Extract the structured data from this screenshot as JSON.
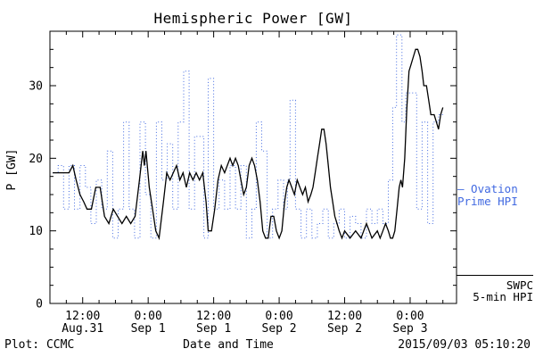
{
  "page": {
    "footer_left": "Plot: CCMC",
    "footer_right": "2015/09/03 05:10:20"
  },
  "chart_data": {
    "type": "line",
    "title": "Hemispheric Power [GW]",
    "xlabel": "Date and Time",
    "ylabel": "P [GW]",
    "ylim": [
      0,
      37.5
    ],
    "yticks": [
      0,
      10,
      20,
      30
    ],
    "y_minor_step": 2.5,
    "x_unit": "hours since 2015-08-31 00:00 UT",
    "xlim_hours_since_aug31": [
      6,
      80.5
    ],
    "x_minor_step_hours": 3,
    "xticks": [
      {
        "t": 12,
        "time": "12:00",
        "date": "Aug.31"
      },
      {
        "t": 24,
        "time": "0:00",
        "date": "Sep 1"
      },
      {
        "t": 36,
        "time": "12:00",
        "date": "Sep 1"
      },
      {
        "t": 48,
        "time": "0:00",
        "date": "Sep 2"
      },
      {
        "t": 60,
        "time": "12:00",
        "date": "Sep 2"
      },
      {
        "t": 72,
        "time": "0:00",
        "date": "Sep 3"
      }
    ],
    "series": [
      {
        "name": "Ovation Prime HPI",
        "color": "#4169e1",
        "line_style": "dotted-step",
        "points": [
          [
            6.5,
            18
          ],
          [
            7.5,
            19
          ],
          [
            8.5,
            13
          ],
          [
            9.5,
            19
          ],
          [
            10.5,
            13
          ],
          [
            11.5,
            19
          ],
          [
            12.5,
            16
          ],
          [
            13.5,
            11
          ],
          [
            14.5,
            17
          ],
          [
            15.5,
            13
          ],
          [
            16.5,
            21
          ],
          [
            17.5,
            9
          ],
          [
            18.5,
            13
          ],
          [
            19.5,
            25
          ],
          [
            20.5,
            13
          ],
          [
            21.5,
            9
          ],
          [
            22.5,
            25
          ],
          [
            23.5,
            15
          ],
          [
            24.5,
            9
          ],
          [
            25.5,
            25
          ],
          [
            26.5,
            17
          ],
          [
            27.5,
            22
          ],
          [
            28.5,
            13
          ],
          [
            29.5,
            25
          ],
          [
            30.5,
            32
          ],
          [
            31.5,
            13
          ],
          [
            32.5,
            23
          ],
          [
            33.5,
            23
          ],
          [
            34.2,
            9
          ],
          [
            35,
            31
          ],
          [
            36,
            13
          ],
          [
            37,
            17
          ],
          [
            38,
            13
          ],
          [
            39,
            19
          ],
          [
            40,
            13
          ],
          [
            41,
            19
          ],
          [
            42,
            9
          ],
          [
            43,
            13
          ],
          [
            43.8,
            25
          ],
          [
            44.8,
            21
          ],
          [
            45.8,
            9
          ],
          [
            46.8,
            13
          ],
          [
            47.8,
            17
          ],
          [
            48.8,
            13
          ],
          [
            49.5,
            17
          ],
          [
            50,
            28
          ],
          [
            51,
            13
          ],
          [
            52,
            9
          ],
          [
            53,
            13
          ],
          [
            54,
            9
          ],
          [
            55,
            11
          ],
          [
            56,
            13
          ],
          [
            57,
            9
          ],
          [
            58,
            11
          ],
          [
            59,
            13
          ],
          [
            60,
            9
          ],
          [
            61,
            12
          ],
          [
            62,
            11
          ],
          [
            63,
            9
          ],
          [
            64,
            13
          ],
          [
            65,
            11
          ],
          [
            66,
            13
          ],
          [
            67,
            11
          ],
          [
            68,
            17
          ],
          [
            68.8,
            27
          ],
          [
            69.5,
            37
          ],
          [
            70.5,
            25
          ],
          [
            71.2,
            29
          ],
          [
            72.2,
            29
          ],
          [
            73.2,
            13
          ],
          [
            74.2,
            25
          ],
          [
            75.2,
            11
          ],
          [
            76.2,
            25
          ],
          [
            77.2,
            26
          ],
          [
            78.2,
            26
          ]
        ]
      },
      {
        "name": "SWPC 5-min HPI",
        "color": "#000000",
        "line_style": "solid",
        "points": [
          [
            6.5,
            18
          ],
          [
            8,
            18
          ],
          [
            9.5,
            18
          ],
          [
            10.2,
            19
          ],
          [
            10.8,
            17
          ],
          [
            11.5,
            15
          ],
          [
            12.2,
            14
          ],
          [
            12.8,
            13
          ],
          [
            13.6,
            13
          ],
          [
            14.4,
            16
          ],
          [
            15.2,
            16
          ],
          [
            16,
            12
          ],
          [
            16.8,
            11
          ],
          [
            17.6,
            13
          ],
          [
            18.4,
            12
          ],
          [
            19.2,
            11
          ],
          [
            20,
            12
          ],
          [
            20.8,
            11
          ],
          [
            21.6,
            12
          ],
          [
            22.4,
            17
          ],
          [
            23,
            21
          ],
          [
            23.3,
            19
          ],
          [
            23.6,
            21
          ],
          [
            24.2,
            16
          ],
          [
            24.8,
            13
          ],
          [
            25.4,
            10
          ],
          [
            26,
            9
          ],
          [
            26.8,
            14
          ],
          [
            27.4,
            18
          ],
          [
            28,
            17
          ],
          [
            28.6,
            18
          ],
          [
            29.2,
            19
          ],
          [
            29.8,
            17
          ],
          [
            30.4,
            18
          ],
          [
            31,
            16
          ],
          [
            31.6,
            18
          ],
          [
            32.2,
            17
          ],
          [
            32.8,
            18
          ],
          [
            33.4,
            17
          ],
          [
            34,
            18
          ],
          [
            34.6,
            14
          ],
          [
            35,
            10
          ],
          [
            35.6,
            10
          ],
          [
            36.2,
            13
          ],
          [
            36.8,
            17
          ],
          [
            37.4,
            19
          ],
          [
            38,
            18
          ],
          [
            38.5,
            19
          ],
          [
            39,
            20
          ],
          [
            39.5,
            19
          ],
          [
            40,
            20
          ],
          [
            40.5,
            19
          ],
          [
            41,
            17
          ],
          [
            41.5,
            15
          ],
          [
            42,
            16
          ],
          [
            42.5,
            19
          ],
          [
            43,
            20
          ],
          [
            43.5,
            19
          ],
          [
            44,
            17
          ],
          [
            44.5,
            14
          ],
          [
            45,
            10
          ],
          [
            45.5,
            9
          ],
          [
            46,
            9
          ],
          [
            46.5,
            12
          ],
          [
            47,
            12
          ],
          [
            47.5,
            10
          ],
          [
            48,
            9
          ],
          [
            48.5,
            10
          ],
          [
            49,
            14
          ],
          [
            49.4,
            16
          ],
          [
            49.8,
            17
          ],
          [
            50.3,
            16
          ],
          [
            50.8,
            15
          ],
          [
            51.3,
            17
          ],
          [
            51.8,
            16
          ],
          [
            52.3,
            15
          ],
          [
            52.8,
            16
          ],
          [
            53.3,
            14
          ],
          [
            53.8,
            15
          ],
          [
            54.2,
            16
          ],
          [
            54.6,
            18
          ],
          [
            55,
            20
          ],
          [
            55.4,
            22
          ],
          [
            55.8,
            24
          ],
          [
            56.2,
            24
          ],
          [
            56.6,
            22
          ],
          [
            57,
            19
          ],
          [
            57.4,
            16
          ],
          [
            57.8,
            14
          ],
          [
            58.2,
            12
          ],
          [
            58.6,
            11
          ],
          [
            59,
            10
          ],
          [
            59.5,
            9
          ],
          [
            60,
            10
          ],
          [
            61,
            9
          ],
          [
            62,
            10
          ],
          [
            63,
            9
          ],
          [
            63.5,
            10
          ],
          [
            64,
            11
          ],
          [
            64.5,
            10
          ],
          [
            65,
            9
          ],
          [
            66,
            10
          ],
          [
            66.5,
            9
          ],
          [
            67,
            10
          ],
          [
            67.5,
            11
          ],
          [
            68,
            10
          ],
          [
            68.4,
            9
          ],
          [
            68.8,
            9
          ],
          [
            69.2,
            10
          ],
          [
            69.6,
            13
          ],
          [
            70,
            16
          ],
          [
            70.3,
            17
          ],
          [
            70.6,
            16
          ],
          [
            71,
            20
          ],
          [
            71.4,
            27
          ],
          [
            71.8,
            32
          ],
          [
            72.2,
            33
          ],
          [
            72.6,
            34
          ],
          [
            73,
            35
          ],
          [
            73.4,
            35
          ],
          [
            73.8,
            34
          ],
          [
            74.2,
            32
          ],
          [
            74.5,
            30
          ],
          [
            75,
            30
          ],
          [
            75.4,
            28
          ],
          [
            75.8,
            26
          ],
          [
            76.4,
            26
          ],
          [
            76.8,
            25
          ],
          [
            77.2,
            24
          ],
          [
            77.6,
            26
          ],
          [
            78,
            27
          ]
        ]
      }
    ],
    "legend": [
      {
        "series": "Ovation Prime HPI",
        "color": "#4169e1",
        "label_lines": [
          "– Ovation",
          "Prime HPI"
        ]
      },
      {
        "series": "SWPC 5-min HPI",
        "color": "#000000",
        "label_lines": [
          "SWPC",
          "5-min HPI"
        ]
      }
    ]
  }
}
